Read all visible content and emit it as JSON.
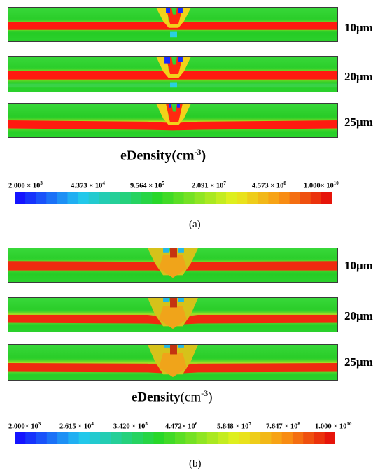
{
  "figure_a": {
    "rows": [
      {
        "thickness": "10μm"
      },
      {
        "thickness": "20μm"
      },
      {
        "thickness": "25μm"
      }
    ],
    "title_main": "eDensity",
    "title_unit": "(cm",
    "title_exp": "-3",
    "title_close": ")",
    "colorbar_ticks": [
      {
        "mantissa": "2.000 × 10",
        "exp": "3"
      },
      {
        "mantissa": "4.373 × 10",
        "exp": "4"
      },
      {
        "mantissa": "9.564 × 10",
        "exp": "5"
      },
      {
        "mantissa": "2.091 × 10",
        "exp": "7"
      },
      {
        "mantissa": "4.573 × 10",
        "exp": "8"
      },
      {
        "mantissa": "1.000× 10",
        "exp": "10"
      }
    ],
    "label": "(a)"
  },
  "figure_b": {
    "rows": [
      {
        "thickness": "10μm"
      },
      {
        "thickness": "20μm"
      },
      {
        "thickness": "25μm"
      }
    ],
    "title_main": "eDensity",
    "title_unit": "(cm",
    "title_exp": "-3",
    "title_close": ")",
    "colorbar_ticks": [
      {
        "mantissa": "2.000× 10",
        "exp": "3"
      },
      {
        "mantissa": "2.615 × 10",
        "exp": "4"
      },
      {
        "mantissa": "3.420 × 10",
        "exp": "5"
      },
      {
        "mantissa": "4.472× 10",
        "exp": "6"
      },
      {
        "mantissa": "5.848 × 10",
        "exp": "7"
      },
      {
        "mantissa": "7.647 × 10",
        "exp": "8"
      },
      {
        "mantissa": "1.000 × 10",
        "exp": "10"
      }
    ],
    "label": "(b)"
  },
  "colors": {
    "low": "#1a1aff",
    "mid_low": "#22d0e0",
    "mid": "#1ed21e",
    "mid_high": "#f2f21a",
    "high": "#ff1a10",
    "panel_bg": "#30d030"
  }
}
